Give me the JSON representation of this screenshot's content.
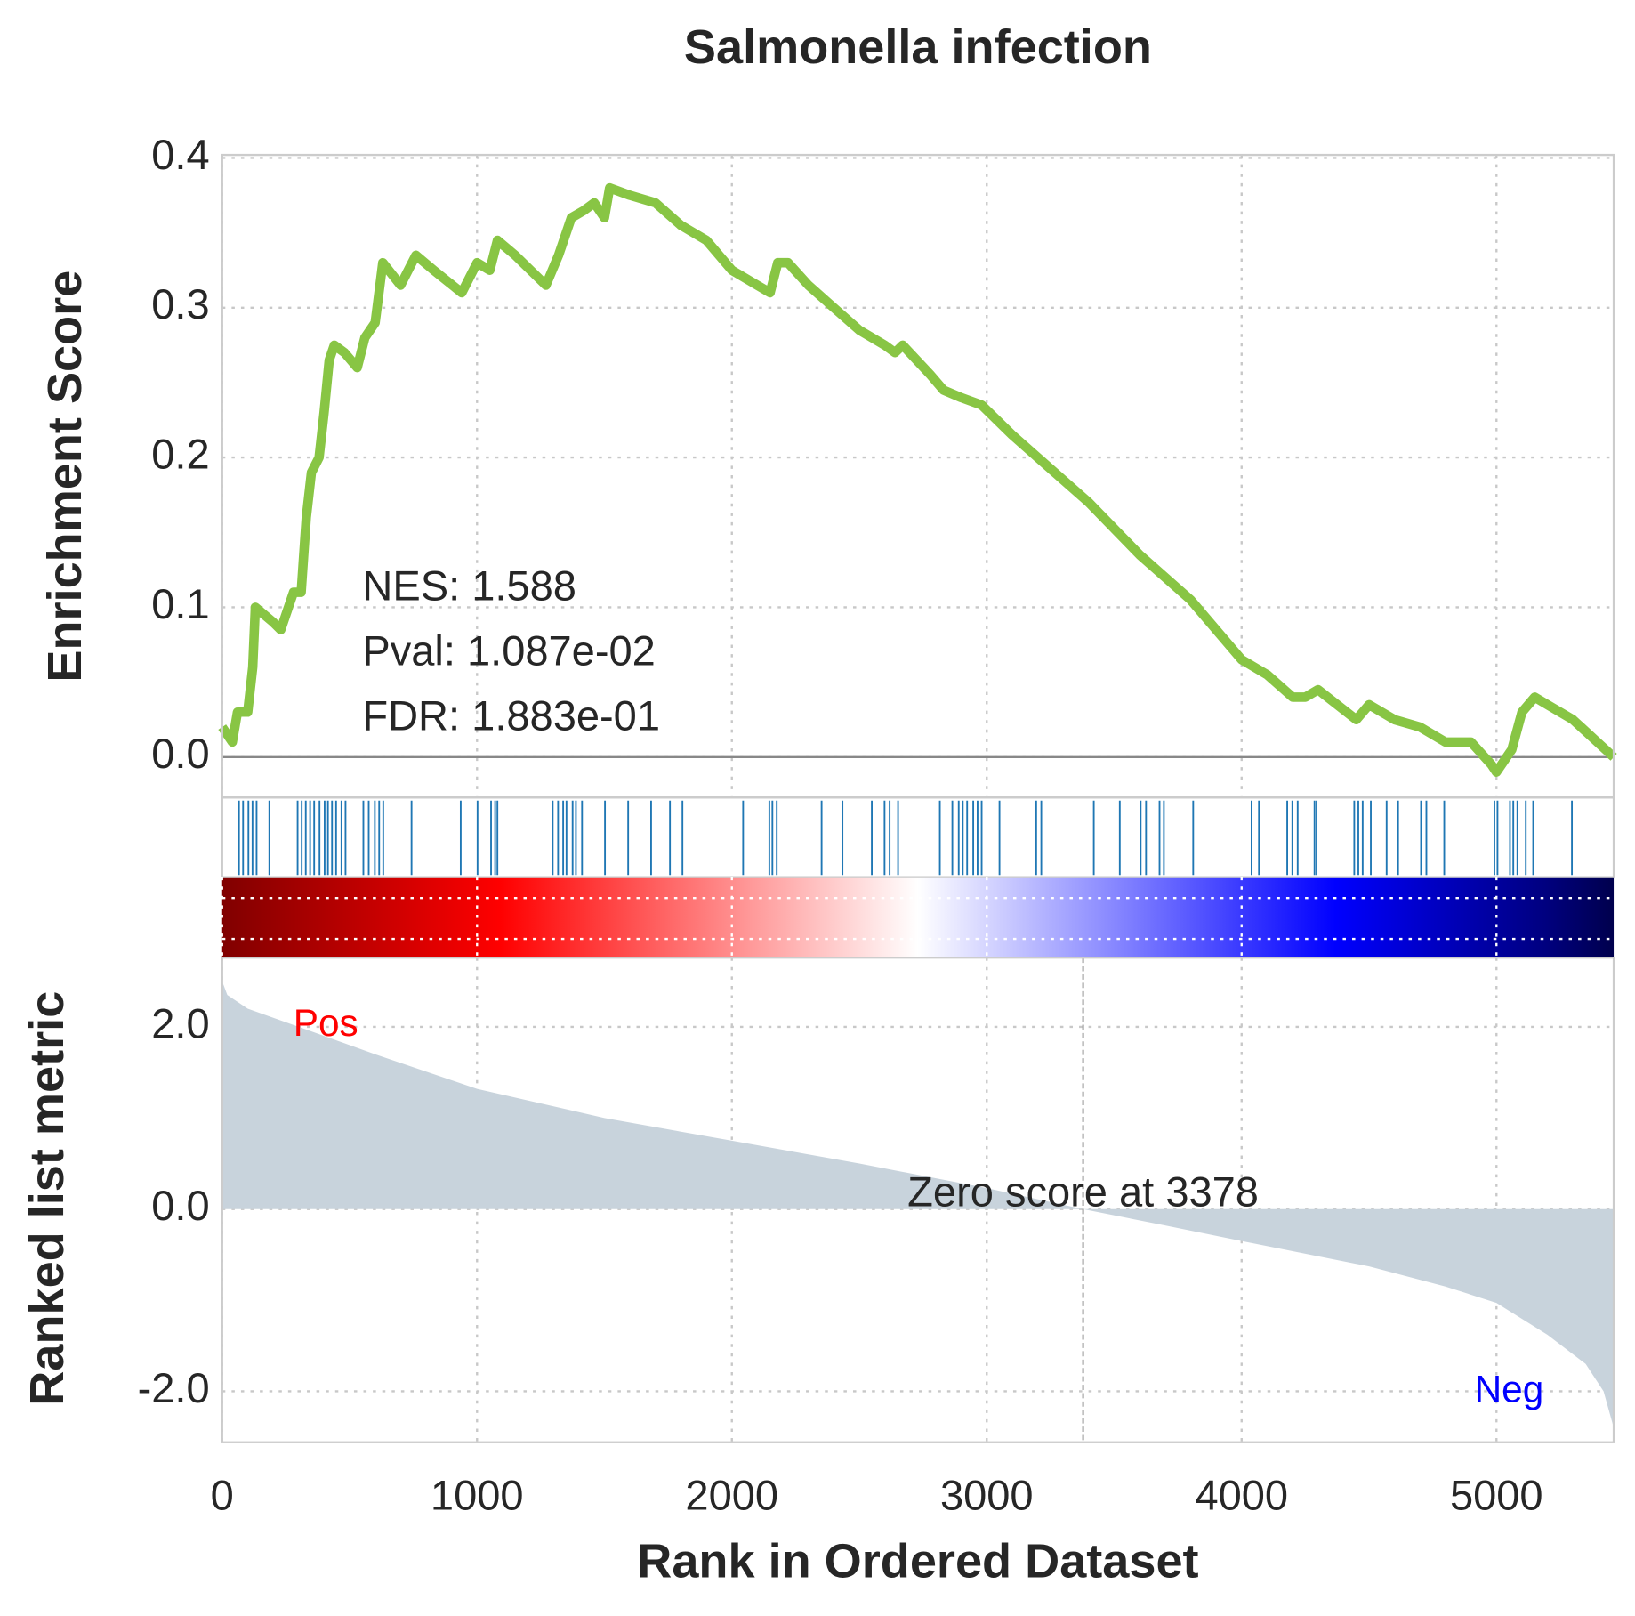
{
  "chart_data": [
    {
      "type": "line",
      "title": "Salmonella infection",
      "ylabel": "Enrichment Score",
      "color": "#88c544",
      "x": [
        0,
        40,
        60,
        100,
        120,
        130,
        200,
        230,
        260,
        280,
        310,
        330,
        350,
        380,
        400,
        420,
        440,
        480,
        530,
        560,
        600,
        630,
        700,
        760,
        830,
        940,
        970,
        1000,
        1050,
        1080,
        1150,
        1270,
        1320,
        1370,
        1420,
        1460,
        1500,
        1520,
        1600,
        1700,
        1800,
        1900,
        2000,
        2100,
        2150,
        2180,
        2220,
        2300,
        2400,
        2500,
        2600,
        2640,
        2670,
        2780,
        2830,
        2900,
        2980,
        3100,
        3200,
        3400,
        3600,
        3800,
        4000,
        4100,
        4200,
        4250,
        4300,
        4450,
        4500,
        4600,
        4700,
        4800,
        4900,
        4980,
        5000,
        5060,
        5100,
        5150,
        5200,
        5300,
        5460
      ],
      "values": [
        0.02,
        0.01,
        0.03,
        0.03,
        0.06,
        0.1,
        0.09,
        0.085,
        0.1,
        0.11,
        0.11,
        0.16,
        0.19,
        0.2,
        0.23,
        0.265,
        0.275,
        0.27,
        0.26,
        0.28,
        0.29,
        0.33,
        0.315,
        0.335,
        0.325,
        0.31,
        0.32,
        0.33,
        0.325,
        0.345,
        0.335,
        0.315,
        0.335,
        0.36,
        0.365,
        0.37,
        0.36,
        0.38,
        0.375,
        0.37,
        0.355,
        0.345,
        0.325,
        0.315,
        0.31,
        0.33,
        0.33,
        0.315,
        0.3,
        0.285,
        0.275,
        0.27,
        0.275,
        0.255,
        0.245,
        0.24,
        0.235,
        0.215,
        0.2,
        0.17,
        0.135,
        0.105,
        0.065,
        0.055,
        0.04,
        0.04,
        0.045,
        0.025,
        0.035,
        0.025,
        0.02,
        0.01,
        0.01,
        -0.005,
        -0.01,
        0.005,
        0.03,
        0.04,
        0.035,
        0.025,
        0.0
      ],
      "xlim": [
        0,
        5460
      ],
      "ylim": [
        -0.027,
        0.402
      ],
      "yticks": [
        {
          "value": 0,
          "label": "0.0"
        },
        0.1,
        0.2,
        0.3,
        0.4
      ],
      "grid": true,
      "annotations": [
        "NES: 1.588",
        "Pval: 1.087e-02",
        "FDR: 1.883e-01"
      ]
    },
    {
      "type": "rug",
      "color": "#1f77b4",
      "xlim": [
        0,
        5460
      ],
      "x": [
        66,
        82,
        103,
        119,
        135,
        185,
        296,
        312,
        328,
        345,
        361,
        382,
        402,
        415,
        431,
        447,
        468,
        484,
        554,
        575,
        599,
        616,
        632,
        743,
        936,
        1002,
        1055,
        1071,
        1080,
        1297,
        1318,
        1338,
        1351,
        1375,
        1388,
        1412,
        1502,
        1593,
        1683,
        1757,
        1806,
        2044,
        2147,
        2159,
        2176,
        2352,
        2434,
        2549,
        2599,
        2619,
        2652,
        2816,
        2865,
        2890,
        2906,
        2923,
        2947,
        2964,
        2980,
        3050,
        3194,
        3214,
        3420,
        3522,
        3604,
        3625,
        3678,
        3695,
        3810,
        4039,
        4068,
        4179,
        4199,
        4220,
        4286,
        4294,
        4442,
        4458,
        4475,
        4507,
        4569,
        4614,
        4704,
        4725,
        4795,
        4992,
        5004,
        5053,
        5066,
        5082,
        5115,
        5144,
        5296
      ]
    },
    {
      "type": "area",
      "xlabel": "Rank in Ordered Dataset",
      "ylabel": "Ranked list metric",
      "color": "#c8d3dc",
      "x": [
        0,
        20,
        100,
        300,
        600,
        1000,
        1500,
        2000,
        2500,
        3000,
        3378,
        3700,
        4000,
        4500,
        4800,
        5000,
        5200,
        5350,
        5420,
        5460
      ],
      "values": [
        2.5,
        2.35,
        2.2,
        2.0,
        1.7,
        1.32,
        1.0,
        0.75,
        0.5,
        0.23,
        0,
        -0.18,
        -0.35,
        -0.63,
        -0.85,
        -1.03,
        -1.38,
        -1.7,
        -2.0,
        -2.4
      ],
      "xlim": [
        0,
        5460
      ],
      "ylim": [
        -2.56,
        2.76
      ],
      "xticks": [
        0,
        1000,
        2000,
        3000,
        4000,
        5000
      ],
      "yticks": [
        {
          "value": -2,
          "label": "-2.0"
        },
        {
          "value": 0,
          "label": "0.0"
        },
        {
          "value": 2,
          "label": "2.0"
        }
      ],
      "grid": true,
      "zero_score_rank": 3378,
      "zero_score_label": "Zero score at 3378",
      "pos_label": "Pos",
      "neg_label": "Neg"
    }
  ]
}
